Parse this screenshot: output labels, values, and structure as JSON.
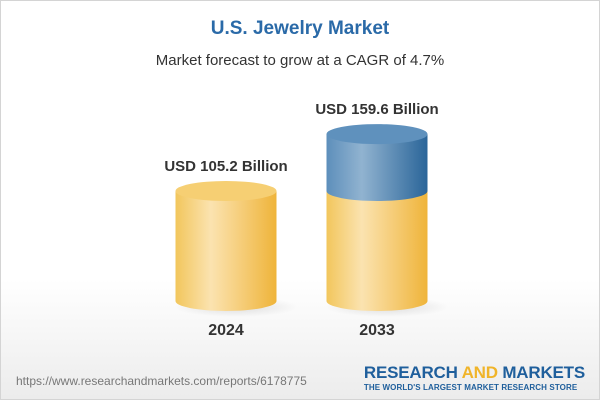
{
  "header": {
    "title": "U.S. Jewelry Market",
    "subtitle": "Market forecast to grow at a CAGR of 4.7%"
  },
  "chart_data": {
    "type": "bar",
    "style": "3d-cylinder",
    "categories": [
      "2024",
      "2033"
    ],
    "values": [
      105.2,
      159.6
    ],
    "value_labels": [
      "USD 105.2 Billion",
      "USD 159.6 Billion"
    ],
    "unit": "USD Billion",
    "cagr": "4.7%",
    "colors": {
      "base": "#f3c75a",
      "growth": "#3f7db0"
    },
    "grid": false
  },
  "footer": {
    "url": "https://www.researchandmarkets.com/reports/6178775",
    "logo_part1": "RESEARCH ",
    "logo_part2": "AND",
    "logo_part3": " MARKETS",
    "tagline": "THE WORLD'S LARGEST MARKET RESEARCH STORE"
  }
}
